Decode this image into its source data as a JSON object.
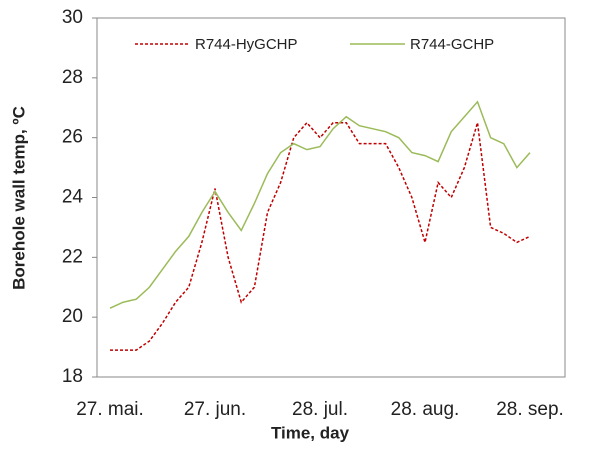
{
  "chart_data": {
    "type": "line",
    "xlabel": "Time, day",
    "ylabel": "Borehole wall temp, ºC",
    "categories": [
      "27. mai.",
      null,
      null,
      null,
      null,
      null,
      null,
      null,
      "27. jun.",
      null,
      null,
      null,
      null,
      null,
      null,
      null,
      "28. jul.",
      null,
      null,
      null,
      null,
      null,
      null,
      null,
      "28. aug.",
      null,
      null,
      null,
      null,
      null,
      null,
      null,
      "28. sep."
    ],
    "series": [
      {
        "name": "R744-HyGCHP",
        "color": "#c00000",
        "dashed": true,
        "values": [
          18.9,
          18.9,
          18.9,
          19.2,
          19.8,
          20.5,
          21.0,
          22.5,
          24.3,
          22.0,
          20.5,
          21.0,
          23.5,
          24.5,
          26.0,
          26.5,
          26.0,
          26.5,
          26.5,
          25.8,
          25.8,
          25.8,
          25.0,
          24.0,
          22.5,
          24.5,
          24.0,
          25.0,
          26.5,
          23.0,
          22.8,
          22.5,
          22.7
        ]
      },
      {
        "name": "R744-GCHP",
        "color": "#9bbb59",
        "dashed": false,
        "values": [
          20.3,
          20.5,
          20.6,
          21.0,
          21.6,
          22.2,
          22.7,
          23.5,
          24.2,
          23.5,
          22.9,
          23.8,
          24.8,
          25.5,
          25.8,
          25.6,
          25.7,
          26.3,
          26.7,
          26.4,
          26.3,
          26.2,
          26.0,
          25.5,
          25.4,
          25.2,
          26.2,
          26.7,
          27.2,
          26.0,
          25.8,
          25.0,
          25.5
        ]
      }
    ],
    "ylim": [
      18,
      30
    ],
    "yticks": [
      18,
      20,
      22,
      24,
      26,
      28,
      30
    ],
    "grid": false,
    "legend": "top"
  }
}
